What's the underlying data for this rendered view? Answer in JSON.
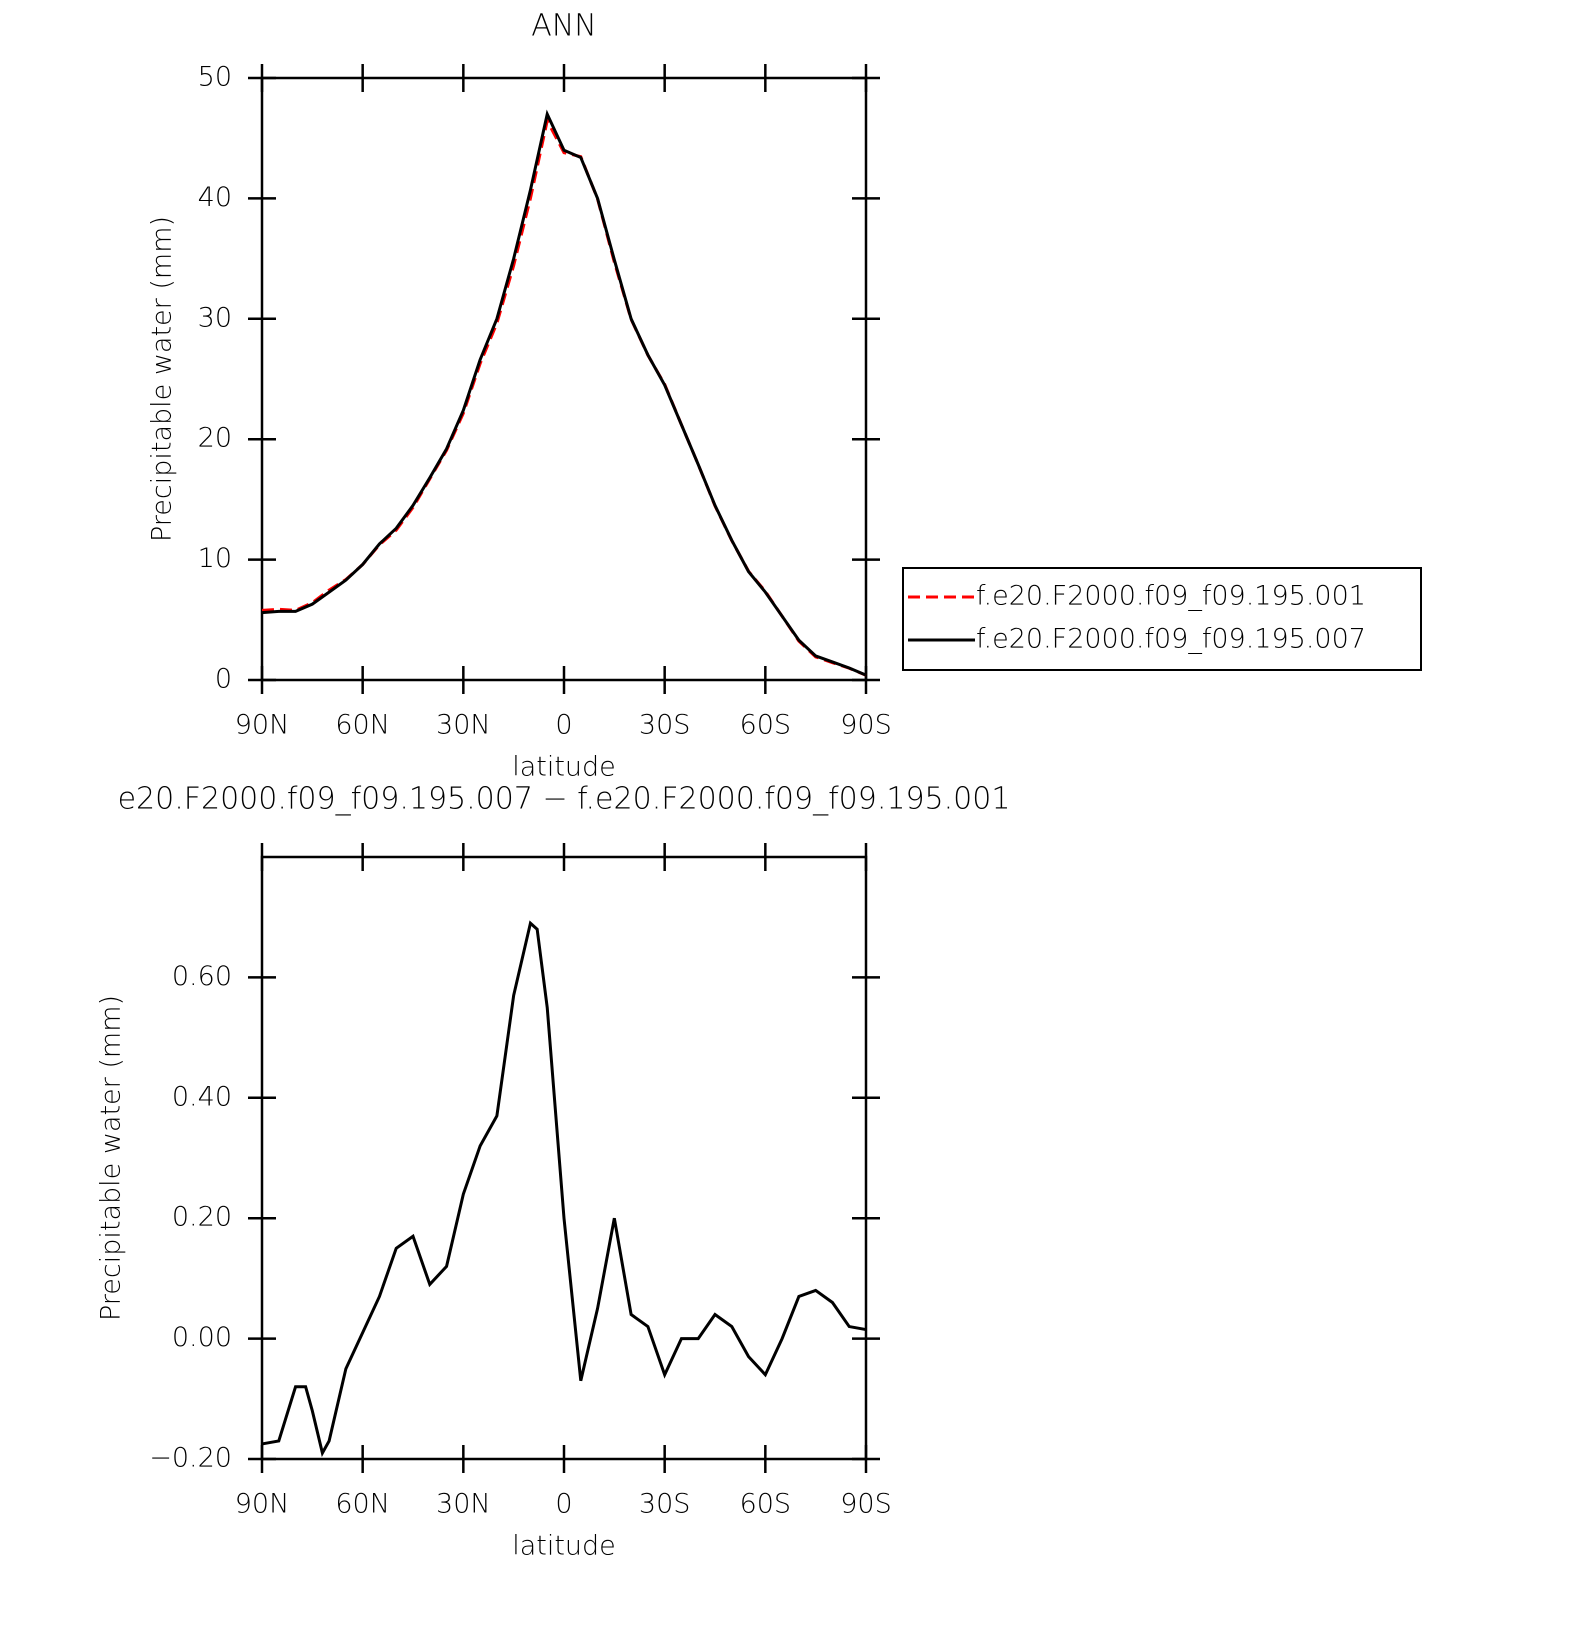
{
  "chart_data": [
    {
      "type": "line",
      "title": "ANN",
      "x_label": "latitude",
      "y_label": "Precipitable water (mm)",
      "x": [
        90,
        85,
        80,
        75,
        70,
        65,
        60,
        55,
        50,
        45,
        40,
        35,
        30,
        25,
        20,
        15,
        10,
        5,
        0,
        -5,
        -10,
        -15,
        -20,
        -25,
        -30,
        -35,
        -40,
        -45,
        -50,
        -55,
        -60,
        -65,
        -70,
        -75,
        -80,
        -85,
        -90
      ],
      "series": [
        {
          "name": "f.e20.F2000.f09_f09.195.001",
          "color": "#ff0000",
          "linestyle": "dashed",
          "values": [
            5.78,
            5.87,
            5.78,
            6.42,
            7.47,
            8.35,
            9.59,
            11.23,
            12.45,
            14.33,
            16.71,
            19.08,
            22.16,
            26.28,
            29.63,
            34.43,
            40.01,
            46.45,
            43.8,
            43.47,
            39.95,
            34.7,
            29.96,
            26.98,
            24.56,
            21.2,
            17.9,
            14.46,
            11.58,
            9.03,
            7.36,
            5.3,
            3.23,
            1.92,
            1.44,
            0.98,
            0.39
          ]
        },
        {
          "name": "f.e20.F2000.f09_f09.195.007",
          "color": "#000000",
          "linestyle": "solid",
          "values": [
            5.6,
            5.7,
            5.7,
            6.3,
            7.3,
            8.3,
            9.6,
            11.3,
            12.6,
            14.5,
            16.8,
            19.2,
            22.4,
            26.6,
            30,
            35,
            40.7,
            47,
            44,
            43.4,
            40,
            34.9,
            30,
            27,
            24.5,
            21.2,
            17.9,
            14.5,
            11.6,
            9,
            7.3,
            5.3,
            3.3,
            2,
            1.5,
            1,
            0.4
          ]
        }
      ],
      "xlim": [
        90,
        -90
      ],
      "xticks": [
        {
          "value": 90,
          "label": "90N"
        },
        {
          "value": 60,
          "label": "60N"
        },
        {
          "value": 30,
          "label": "30N"
        },
        0,
        {
          "value": -30,
          "label": "30S"
        },
        {
          "value": -60,
          "label": "60S"
        },
        {
          "value": -90,
          "label": "90S"
        }
      ],
      "ylim": [
        0,
        50
      ],
      "yticks": [
        0,
        10,
        20,
        30,
        40,
        50
      ],
      "legend": "right"
    },
    {
      "type": "line",
      "title": "e20.F2000.f09_f09.195.007 − f.e20.F2000.f09_f09.195.001",
      "x_label": "latitude",
      "y_label": "Precipitable water (mm)",
      "x": [
        90,
        85,
        80,
        77,
        75,
        72,
        70,
        65,
        60,
        55,
        50,
        45,
        40,
        35,
        30,
        25,
        20,
        15,
        10,
        8,
        5,
        0,
        -5,
        -10,
        -15,
        -20,
        -25,
        -30,
        -35,
        -40,
        -45,
        -50,
        -55,
        -60,
        -65,
        -70,
        -75,
        -80,
        -85,
        -90
      ],
      "series": [
        {
          "color": "#000000",
          "linestyle": "solid",
          "values": [
            -0.175,
            -0.17,
            -0.08,
            -0.08,
            -0.12,
            -0.19,
            -0.17,
            -0.05,
            0.01,
            0.07,
            0.15,
            0.17,
            0.09,
            0.12,
            0.24,
            0.32,
            0.37,
            0.57,
            0.69,
            0.68,
            0.55,
            0.2,
            -0.07,
            0.05,
            0.2,
            0.04,
            0.02,
            -0.06,
            0,
            0,
            0.04,
            0.02,
            -0.03,
            -0.06,
            0,
            0.07,
            0.08,
            0.06,
            0.02,
            0.015
          ]
        }
      ],
      "xlim": [
        90,
        -90
      ],
      "xticks": [
        {
          "value": 90,
          "label": "90N"
        },
        {
          "value": 60,
          "label": "60N"
        },
        {
          "value": 30,
          "label": "30N"
        },
        0,
        {
          "value": -30,
          "label": "30S"
        },
        {
          "value": -60,
          "label": "60S"
        },
        {
          "value": -90,
          "label": "90S"
        }
      ],
      "ylim": [
        -0.2,
        0.8
      ],
      "yticks": [
        {
          "value": -0.2,
          "label": "−0.20"
        },
        {
          "value": 0,
          "label": "0.00"
        },
        {
          "value": 0.2,
          "label": "0.20"
        },
        {
          "value": 0.4,
          "label": "0.40"
        },
        {
          "value": 0.6,
          "label": "0.60"
        }
      ]
    }
  ]
}
